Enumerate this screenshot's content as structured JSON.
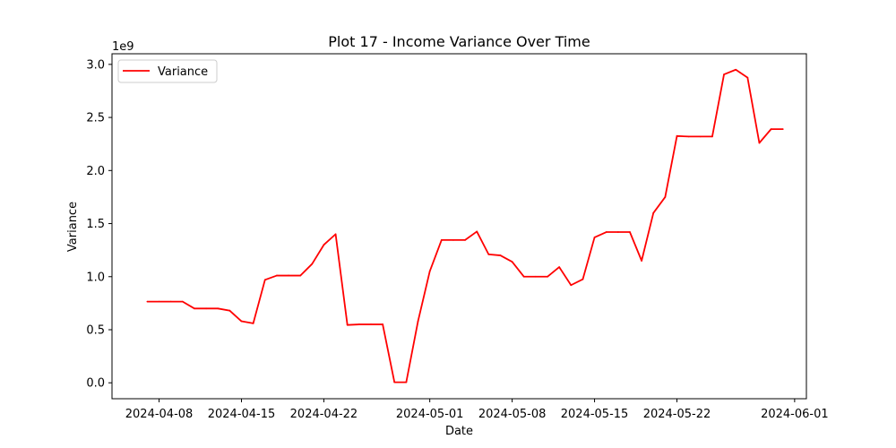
{
  "chart_data": {
    "type": "line",
    "title": "Plot 17 - Income Variance Over Time",
    "xlabel": "Date",
    "ylabel": "Variance",
    "y_offset_label": "1e9",
    "x_tick_labels": [
      "2024-04-08",
      "2024-04-15",
      "2024-04-22",
      "2024-05-01",
      "2024-05-08",
      "2024-05-15",
      "2024-05-22",
      "2024-06-01"
    ],
    "y_tick_labels": [
      "0.0",
      "0.5",
      "1.0",
      "1.5",
      "2.0",
      "2.5",
      "3.0"
    ],
    "y_ticks": [
      0,
      0.5,
      1.0,
      1.5,
      2.0,
      2.5,
      3.0
    ],
    "xlim": [
      "2024-04-04",
      "2024-06-02"
    ],
    "ylim": [
      -0.15,
      3.1
    ],
    "grid": false,
    "legend_position": "upper left",
    "series": [
      {
        "name": "Variance",
        "color": "#ff0000",
        "x": [
          "2024-04-07",
          "2024-04-08",
          "2024-04-09",
          "2024-04-10",
          "2024-04-11",
          "2024-04-12",
          "2024-04-13",
          "2024-04-14",
          "2024-04-15",
          "2024-04-16",
          "2024-04-17",
          "2024-04-18",
          "2024-04-19",
          "2024-04-20",
          "2024-04-21",
          "2024-04-22",
          "2024-04-23",
          "2024-04-24",
          "2024-04-25",
          "2024-04-26",
          "2024-04-27",
          "2024-04-28",
          "2024-04-29",
          "2024-04-30",
          "2024-05-01",
          "2024-05-02",
          "2024-05-03",
          "2024-05-04",
          "2024-05-05",
          "2024-05-06",
          "2024-05-07",
          "2024-05-08",
          "2024-05-09",
          "2024-05-10",
          "2024-05-11",
          "2024-05-12",
          "2024-05-13",
          "2024-05-14",
          "2024-05-15",
          "2024-05-16",
          "2024-05-17",
          "2024-05-18",
          "2024-05-19",
          "2024-05-20",
          "2024-05-21",
          "2024-05-22",
          "2024-05-23",
          "2024-05-24",
          "2024-05-25",
          "2024-05-26",
          "2024-05-27",
          "2024-05-28",
          "2024-05-29",
          "2024-05-30",
          "2024-05-31"
        ],
        "values": [
          0.765,
          0.765,
          0.765,
          0.765,
          0.7,
          0.7,
          0.7,
          0.68,
          0.58,
          0.56,
          0.97,
          1.01,
          1.01,
          1.01,
          1.12,
          1.3,
          1.4,
          0.545,
          0.55,
          0.55,
          0.55,
          0.005,
          0.005,
          0.58,
          1.05,
          1.345,
          1.345,
          1.345,
          1.425,
          1.21,
          1.2,
          1.14,
          1.0,
          1.0,
          1.0,
          1.09,
          0.92,
          0.975,
          1.37,
          1.42,
          1.42,
          1.42,
          1.15,
          1.6,
          1.75,
          2.325,
          2.32,
          2.32,
          2.32,
          2.905,
          2.95,
          2.875,
          2.26,
          2.39,
          2.39
        ]
      }
    ]
  }
}
